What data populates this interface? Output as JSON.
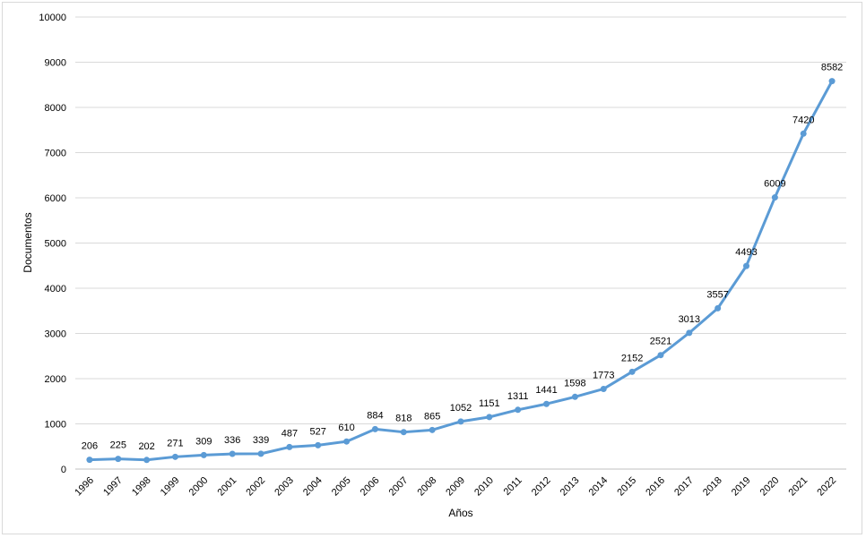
{
  "chart_data": {
    "type": "line",
    "title": "",
    "xlabel": "Años",
    "ylabel": "Documentos",
    "ylim": [
      0,
      10000
    ],
    "y_ticks": [
      0,
      1000,
      2000,
      3000,
      4000,
      5000,
      6000,
      7000,
      8000,
      9000,
      10000
    ],
    "categories": [
      "1996",
      "1997",
      "1998",
      "1999",
      "2000",
      "2001",
      "2002",
      "2003",
      "2004",
      "2005",
      "2006",
      "2007",
      "2008",
      "2009",
      "2010",
      "2011",
      "2012",
      "2013",
      "2014",
      "2015",
      "2016",
      "2017",
      "2018",
      "2019",
      "2020",
      "2021",
      "2022"
    ],
    "series": [
      {
        "values": [
          206,
          225,
          202,
          271,
          309,
          336,
          339,
          487,
          527,
          610,
          884,
          818,
          865,
          1052,
          1151,
          1311,
          1441,
          1598,
          1773,
          2152,
          2521,
          3013,
          3557,
          4493,
          6009,
          7420,
          8582
        ],
        "color": "#5b9bd5"
      }
    ],
    "grid": true,
    "legend": "none"
  }
}
